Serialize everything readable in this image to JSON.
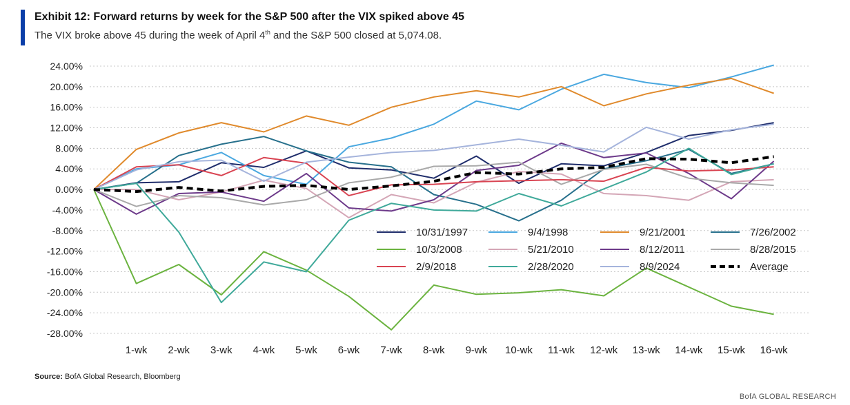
{
  "header": {
    "title": "Exhibit 12: Forward returns by week for the S&P 500 after the VIX spiked above 45",
    "subtitle_pre": "The VIX broke above 45 during the week of April 4",
    "subtitle_sup": "th",
    "subtitle_post": " and the S&P 500 closed at 5,074.08."
  },
  "footer": {
    "source_label": "Source:",
    "source_text": " BofA Global Research, Bloomberg",
    "brand": "BofA GLOBAL RESEARCH"
  },
  "chart_data": {
    "type": "line",
    "categories": [
      "",
      "1-wk",
      "2-wk",
      "3-wk",
      "4-wk",
      "5-wk",
      "6-wk",
      "7-wk",
      "8-wk",
      "9-wk",
      "10-wk",
      "11-wk",
      "12-wk",
      "13-wk",
      "14-wk",
      "15-wk",
      "16-wk"
    ],
    "ylim": [
      -28,
      24
    ],
    "yticks": [
      24,
      20,
      16,
      12,
      8,
      4,
      0,
      -4,
      -8,
      -12,
      -16,
      -20,
      -24,
      -28
    ],
    "ytick_labels": [
      "24.00%",
      "20.00%",
      "16.00%",
      "12.00%",
      "8.00%",
      "4.00%",
      "0.00%",
      "-4.00%",
      "-8.00%",
      "-12.00%",
      "-16.00%",
      "-20.00%",
      "-24.00%",
      "-28.00%"
    ],
    "grid": true,
    "legend_position": "lower-right",
    "series": [
      {
        "name": "10/31/1997",
        "color": "#1f2d6b",
        "width": 2,
        "dash": "",
        "values": [
          0,
          1.3,
          1.5,
          5.2,
          4.3,
          7.5,
          4.2,
          3.8,
          2.2,
          6.5,
          1.2,
          5.0,
          4.6,
          7.2,
          10.5,
          11.5,
          13.0
        ]
      },
      {
        "name": "9/4/1998",
        "color": "#4aa8e0",
        "width": 2,
        "dash": "",
        "values": [
          0,
          4.0,
          4.8,
          7.2,
          2.7,
          1.0,
          8.3,
          10.0,
          12.7,
          17.2,
          15.5,
          19.5,
          22.4,
          20.8,
          19.8,
          21.9,
          24.2
        ]
      },
      {
        "name": "9/21/2001",
        "color": "#e08a2c",
        "width": 2,
        "dash": "",
        "values": [
          0,
          7.8,
          11.0,
          13.0,
          11.2,
          14.3,
          12.5,
          16.0,
          18.0,
          19.2,
          18.0,
          20.0,
          16.3,
          18.6,
          20.3,
          21.6,
          18.7
        ]
      },
      {
        "name": "7/26/2002",
        "color": "#27708c",
        "width": 2,
        "dash": "",
        "values": [
          0,
          1.2,
          6.6,
          8.8,
          10.3,
          7.5,
          5.3,
          4.4,
          -1.0,
          -2.9,
          -6.1,
          -2.1,
          4.0,
          5.6,
          7.8,
          3.1,
          5.0
        ]
      },
      {
        "name": "10/3/2008",
        "color": "#6bb33f",
        "width": 2,
        "dash": "",
        "values": [
          0,
          -18.3,
          -14.6,
          -20.5,
          -12.1,
          -15.7,
          -20.8,
          -27.3,
          -18.6,
          -20.4,
          -20.1,
          -19.5,
          -20.7,
          -15.3,
          -19.0,
          -22.7,
          -24.3
        ]
      },
      {
        "name": "5/21/2010",
        "color": "#d4a6b6",
        "width": 2,
        "dash": "",
        "values": [
          0,
          0.0,
          -2.0,
          -0.5,
          1.8,
          0.2,
          -5.5,
          -1.0,
          -2.6,
          1.4,
          3.5,
          3.0,
          -0.8,
          -1.2,
          -2.1,
          1.5,
          1.9
        ]
      },
      {
        "name": "8/12/2011",
        "color": "#6d3a8a",
        "width": 2,
        "dash": "",
        "values": [
          0,
          -4.8,
          -0.8,
          -0.5,
          -2.3,
          3.1,
          -3.6,
          -4.2,
          -2.0,
          3.7,
          4.7,
          9.0,
          6.2,
          7.1,
          3.1,
          -1.8,
          5.5
        ]
      },
      {
        "name": "8/28/2015",
        "color": "#a9a9a9",
        "width": 2,
        "dash": "",
        "values": [
          0,
          -3.3,
          -1.2,
          -1.6,
          -3.0,
          -2.0,
          1.3,
          2.4,
          4.5,
          4.6,
          5.3,
          1.0,
          3.9,
          4.9,
          2.2,
          1.3,
          0.8
        ]
      },
      {
        "name": "2/9/2018",
        "color": "#d94452",
        "width": 2,
        "dash": "",
        "values": [
          0,
          4.4,
          4.8,
          2.7,
          6.2,
          5.1,
          -1.2,
          0.9,
          1.0,
          1.5,
          1.7,
          1.9,
          1.6,
          4.3,
          3.6,
          3.8,
          4.4
        ]
      },
      {
        "name": "2/28/2020",
        "color": "#3fa99a",
        "width": 2,
        "dash": "",
        "values": [
          0,
          1.2,
          -8.3,
          -22.0,
          -14.1,
          -16.0,
          -6.0,
          -2.7,
          -4.0,
          -4.2,
          -0.8,
          -3.2,
          0.1,
          3.4,
          8.0,
          2.9,
          5.0
        ]
      },
      {
        "name": "8/9/2024",
        "color": "#a5b4dc",
        "width": 2,
        "dash": "",
        "values": [
          0,
          3.8,
          5.4,
          5.7,
          1.6,
          5.3,
          6.3,
          7.2,
          7.6,
          8.7,
          9.8,
          8.6,
          7.3,
          12.1,
          9.8,
          11.6,
          12.7
        ]
      },
      {
        "name": "Average",
        "color": "#000000",
        "width": 4,
        "dash": "9 6",
        "values": [
          0,
          -0.4,
          0.4,
          -0.3,
          0.6,
          0.8,
          0.0,
          0.7,
          1.6,
          3.3,
          3.0,
          4.0,
          4.3,
          6.0,
          5.9,
          5.2,
          6.4
        ]
      }
    ]
  }
}
